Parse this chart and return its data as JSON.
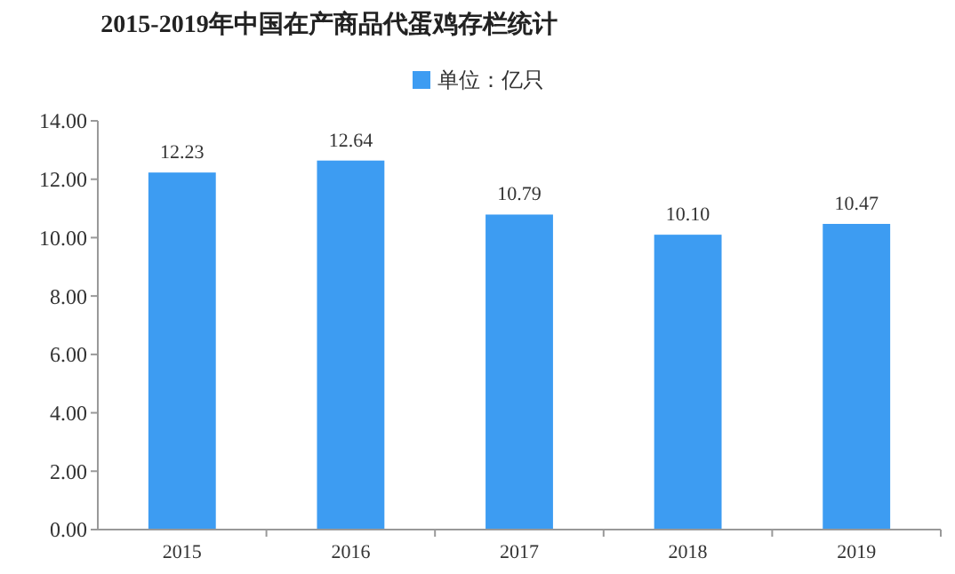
{
  "chart_data": {
    "type": "bar",
    "title": "2015-2019年中国在产商品代蛋鸡存栏统计",
    "categories": [
      "2015",
      "2016",
      "2017",
      "2018",
      "2019"
    ],
    "series": [
      {
        "name": "单位：亿只",
        "color": "#3d9cf2",
        "values": [
          12.23,
          12.64,
          10.79,
          10.1,
          10.47
        ]
      }
    ],
    "ylim": [
      0,
      14
    ],
    "yticks": [
      {
        "value": 0,
        "label": "0.00"
      },
      {
        "value": 2,
        "label": "2.00"
      },
      {
        "value": 4,
        "label": "4.00"
      },
      {
        "value": 6,
        "label": "6.00"
      },
      {
        "value": 8,
        "label": "8.00"
      },
      {
        "value": 10,
        "label": "10.00"
      },
      {
        "value": 12,
        "label": "12.00"
      },
      {
        "value": 14,
        "label": "14.00"
      }
    ],
    "value_labels": [
      "12.23",
      "12.64",
      "10.79",
      "10.10",
      "10.47"
    ],
    "legend": "top",
    "grid": false
  }
}
